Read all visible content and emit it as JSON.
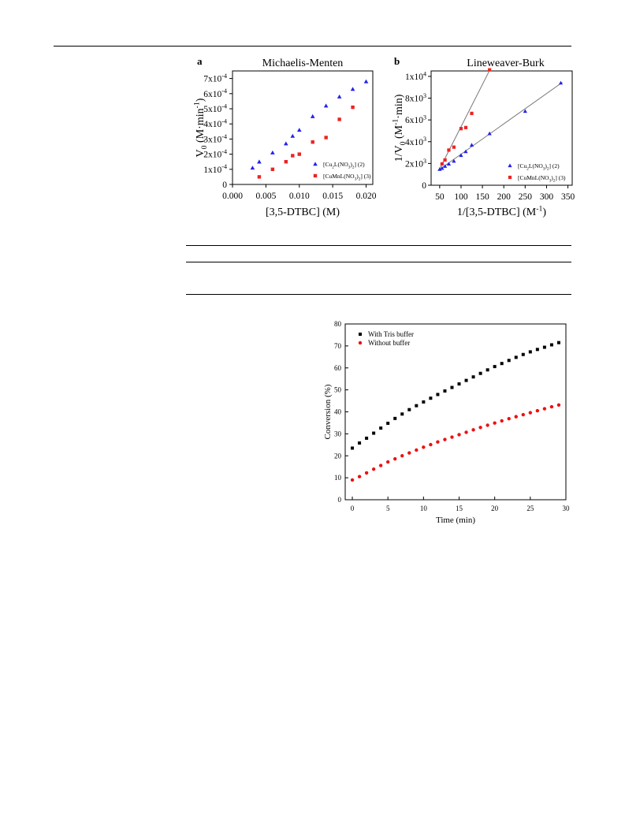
{
  "chart_data": [
    {
      "id": "a",
      "type": "scatter",
      "panel_label": "a",
      "title": "Michaelis-Menten",
      "xlabel": "[3,5-DTBC] (M)",
      "ylabel_main": "V",
      "ylabel_sub": "0",
      "ylabel_rest": " (M·min",
      "ylabel_sup": "-1",
      "ylabel_end": ")",
      "xlim": [
        0,
        0.021
      ],
      "ylim": [
        0,
        0.00075
      ],
      "x_ticks": [
        0,
        0.005,
        0.01,
        0.015,
        0.02
      ],
      "x_tick_labels": [
        "0.000",
        "0.005",
        "0.010",
        "0.015",
        "0.020"
      ],
      "y_ticks": [
        0,
        0.0001,
        0.0002,
        0.0003,
        0.0004,
        0.0005,
        0.0006,
        0.0007
      ],
      "y_tick_labels": [
        {
          "base": "0",
          "sup": ""
        },
        {
          "base": "1x10",
          "sup": "-4"
        },
        {
          "base": "2x10",
          "sup": "-4"
        },
        {
          "base": "3x10",
          "sup": "-4"
        },
        {
          "base": "4x10",
          "sup": "-4"
        },
        {
          "base": "5x10",
          "sup": "-4"
        },
        {
          "base": "6x10",
          "sup": "-4"
        },
        {
          "base": "7x10",
          "sup": "-4"
        }
      ],
      "legend_position": "bottom-right",
      "grid": false,
      "series": [
        {
          "name": "[Cu2L(NO3)2] (2)",
          "legend_parts": [
            [
              "[Cu",
              ""
            ],
            [
              "2",
              "sub"
            ],
            [
              "L(NO",
              ""
            ],
            [
              "3",
              "sub"
            ],
            [
              ")",
              ""
            ],
            [
              "2",
              "sub"
            ],
            [
              "] (2)",
              ""
            ]
          ],
          "marker": "triangle",
          "color": "#2222ee",
          "x": [
            0.003,
            0.004,
            0.006,
            0.008,
            0.009,
            0.01,
            0.012,
            0.014,
            0.016,
            0.018,
            0.02
          ],
          "y": [
            0.00011,
            0.00015,
            0.00021,
            0.00027,
            0.00032,
            0.00036,
            0.00045,
            0.00052,
            0.00058,
            0.00063,
            0.00068
          ]
        },
        {
          "name": "[CuMnL(NO3)2] (3)",
          "legend_parts": [
            [
              "[CuMnL(NO",
              ""
            ],
            [
              "3",
              "sub"
            ],
            [
              ")",
              ""
            ],
            [
              "2",
              "sub"
            ],
            [
              "] (3)",
              ""
            ]
          ],
          "marker": "square",
          "color": "#ee2222",
          "x": [
            0.004,
            0.006,
            0.008,
            0.009,
            0.01,
            0.012,
            0.014,
            0.016,
            0.018
          ],
          "y": [
            5e-05,
            0.0001,
            0.00015,
            0.00019,
            0.0002,
            0.00028,
            0.00031,
            0.00043,
            0.00051
          ]
        }
      ]
    },
    {
      "id": "b",
      "type": "scatter",
      "panel_label": "b",
      "title": "Lineweaver-Burk",
      "xlabel_main": "1/[3,5-DTBC] (M",
      "xlabel_sup": "-1",
      "xlabel_end": ")",
      "ylabel_main": "1/V",
      "ylabel_sub": "0",
      "ylabel_rest": " (M",
      "ylabel_sup": "-1",
      "ylabel_end": "·min)",
      "xlim": [
        30,
        360
      ],
      "ylim": [
        0,
        10500
      ],
      "x_ticks": [
        50,
        100,
        150,
        200,
        250,
        300,
        350
      ],
      "x_tick_labels": [
        "50",
        "100",
        "150",
        "200",
        "250",
        "300",
        "350"
      ],
      "y_ticks": [
        0,
        2000,
        4000,
        6000,
        8000,
        10000
      ],
      "y_tick_labels": [
        {
          "base": "0",
          "sup": ""
        },
        {
          "base": "2x10",
          "sup": "3"
        },
        {
          "base": "4x10",
          "sup": "3"
        },
        {
          "base": "6x10",
          "sup": "3"
        },
        {
          "base": "8x10",
          "sup": "3"
        },
        {
          "base": "1x10",
          "sup": "4"
        }
      ],
      "legend_position": "bottom-right",
      "grid": false,
      "series": [
        {
          "name": "[Cu2L(NO3)2] (2)",
          "legend_parts": [
            [
              "[Cu",
              ""
            ],
            [
              "2",
              "sub"
            ],
            [
              "L(NO",
              ""
            ],
            [
              "3",
              "sub"
            ],
            [
              ")",
              ""
            ],
            [
              "2",
              "sub"
            ],
            [
              "] (2)",
              ""
            ]
          ],
          "marker": "triangle",
          "color": "#2222ee",
          "x": [
            50,
            55.6,
            62.5,
            71.4,
            83.3,
            100,
            111.1,
            125,
            166.7,
            250,
            333.3
          ],
          "y": [
            1470,
            1560,
            1750,
            1960,
            2220,
            2750,
            3100,
            3700,
            4750,
            6800,
            9400
          ],
          "fit": {
            "x": [
              46,
              337
            ],
            "y": [
              1350,
              9450
            ]
          }
        },
        {
          "name": "[CuMnL(NO3)2] (3)",
          "legend_parts": [
            [
              "[CuMnL(NO",
              ""
            ],
            [
              "3",
              "sub"
            ],
            [
              ")",
              ""
            ],
            [
              "2",
              "sub"
            ],
            [
              "] (3)",
              ""
            ]
          ],
          "marker": "square",
          "color": "#ee2222",
          "x": [
            55.6,
            62.5,
            71.4,
            83.3,
            100,
            111.1,
            125,
            166.7
          ],
          "y": [
            1960,
            2320,
            3230,
            3500,
            5200,
            5300,
            6600,
            10600
          ],
          "fit": {
            "x": [
              48,
              168
            ],
            "y": [
              1350,
              10650
            ]
          }
        }
      ]
    },
    {
      "id": "c",
      "type": "scatter",
      "title": "",
      "xlabel": "Time (min)",
      "ylabel": "Conversion (%)",
      "xlim": [
        -1,
        30
      ],
      "ylim": [
        0,
        80
      ],
      "x_ticks": [
        0,
        5,
        10,
        15,
        20,
        25,
        30
      ],
      "x_tick_labels": [
        "0",
        "5",
        "10",
        "15",
        "20",
        "25",
        "30"
      ],
      "y_ticks": [
        0,
        10,
        20,
        30,
        40,
        50,
        60,
        70,
        80
      ],
      "y_tick_labels": [
        "0",
        "10",
        "20",
        "30",
        "40",
        "50",
        "60",
        "70",
        "80"
      ],
      "legend_position": "top-left",
      "grid": false,
      "series": [
        {
          "name": "With Tris buffer",
          "marker": "square",
          "color": "#000000",
          "x": [
            0,
            1,
            2,
            3,
            4,
            5,
            6,
            7,
            8,
            9,
            10,
            11,
            12,
            13,
            14,
            15,
            16,
            17,
            18,
            19,
            20,
            21,
            22,
            23,
            24,
            25,
            26,
            27,
            28,
            29
          ],
          "y": [
            23.5,
            25.8,
            28,
            30.3,
            32.6,
            34.8,
            37,
            39,
            41,
            42.8,
            44.5,
            46.2,
            47.9,
            49.5,
            51.1,
            52.7,
            54.3,
            55.9,
            57.5,
            59.1,
            60.6,
            62,
            63.4,
            64.8,
            66.1,
            67.3,
            68.4,
            69.4,
            70.5,
            71.5
          ]
        },
        {
          "name": "Without buffer",
          "marker": "circle",
          "color": "#ee1111",
          "x": [
            0,
            1,
            2,
            3,
            4,
            5,
            6,
            7,
            8,
            9,
            10,
            11,
            12,
            13,
            14,
            15,
            16,
            17,
            18,
            19,
            20,
            21,
            22,
            23,
            24,
            25,
            26,
            27,
            28,
            29
          ],
          "y": [
            9,
            10.5,
            12.2,
            13.9,
            15.6,
            17.2,
            18.6,
            20,
            21.3,
            22.6,
            23.9,
            25.1,
            26.3,
            27.4,
            28.5,
            29.6,
            30.7,
            31.8,
            32.9,
            33.9,
            34.9,
            35.9,
            36.9,
            37.8,
            38.7,
            39.6,
            40.5,
            41.4,
            42.3,
            43.1
          ]
        }
      ]
    }
  ]
}
